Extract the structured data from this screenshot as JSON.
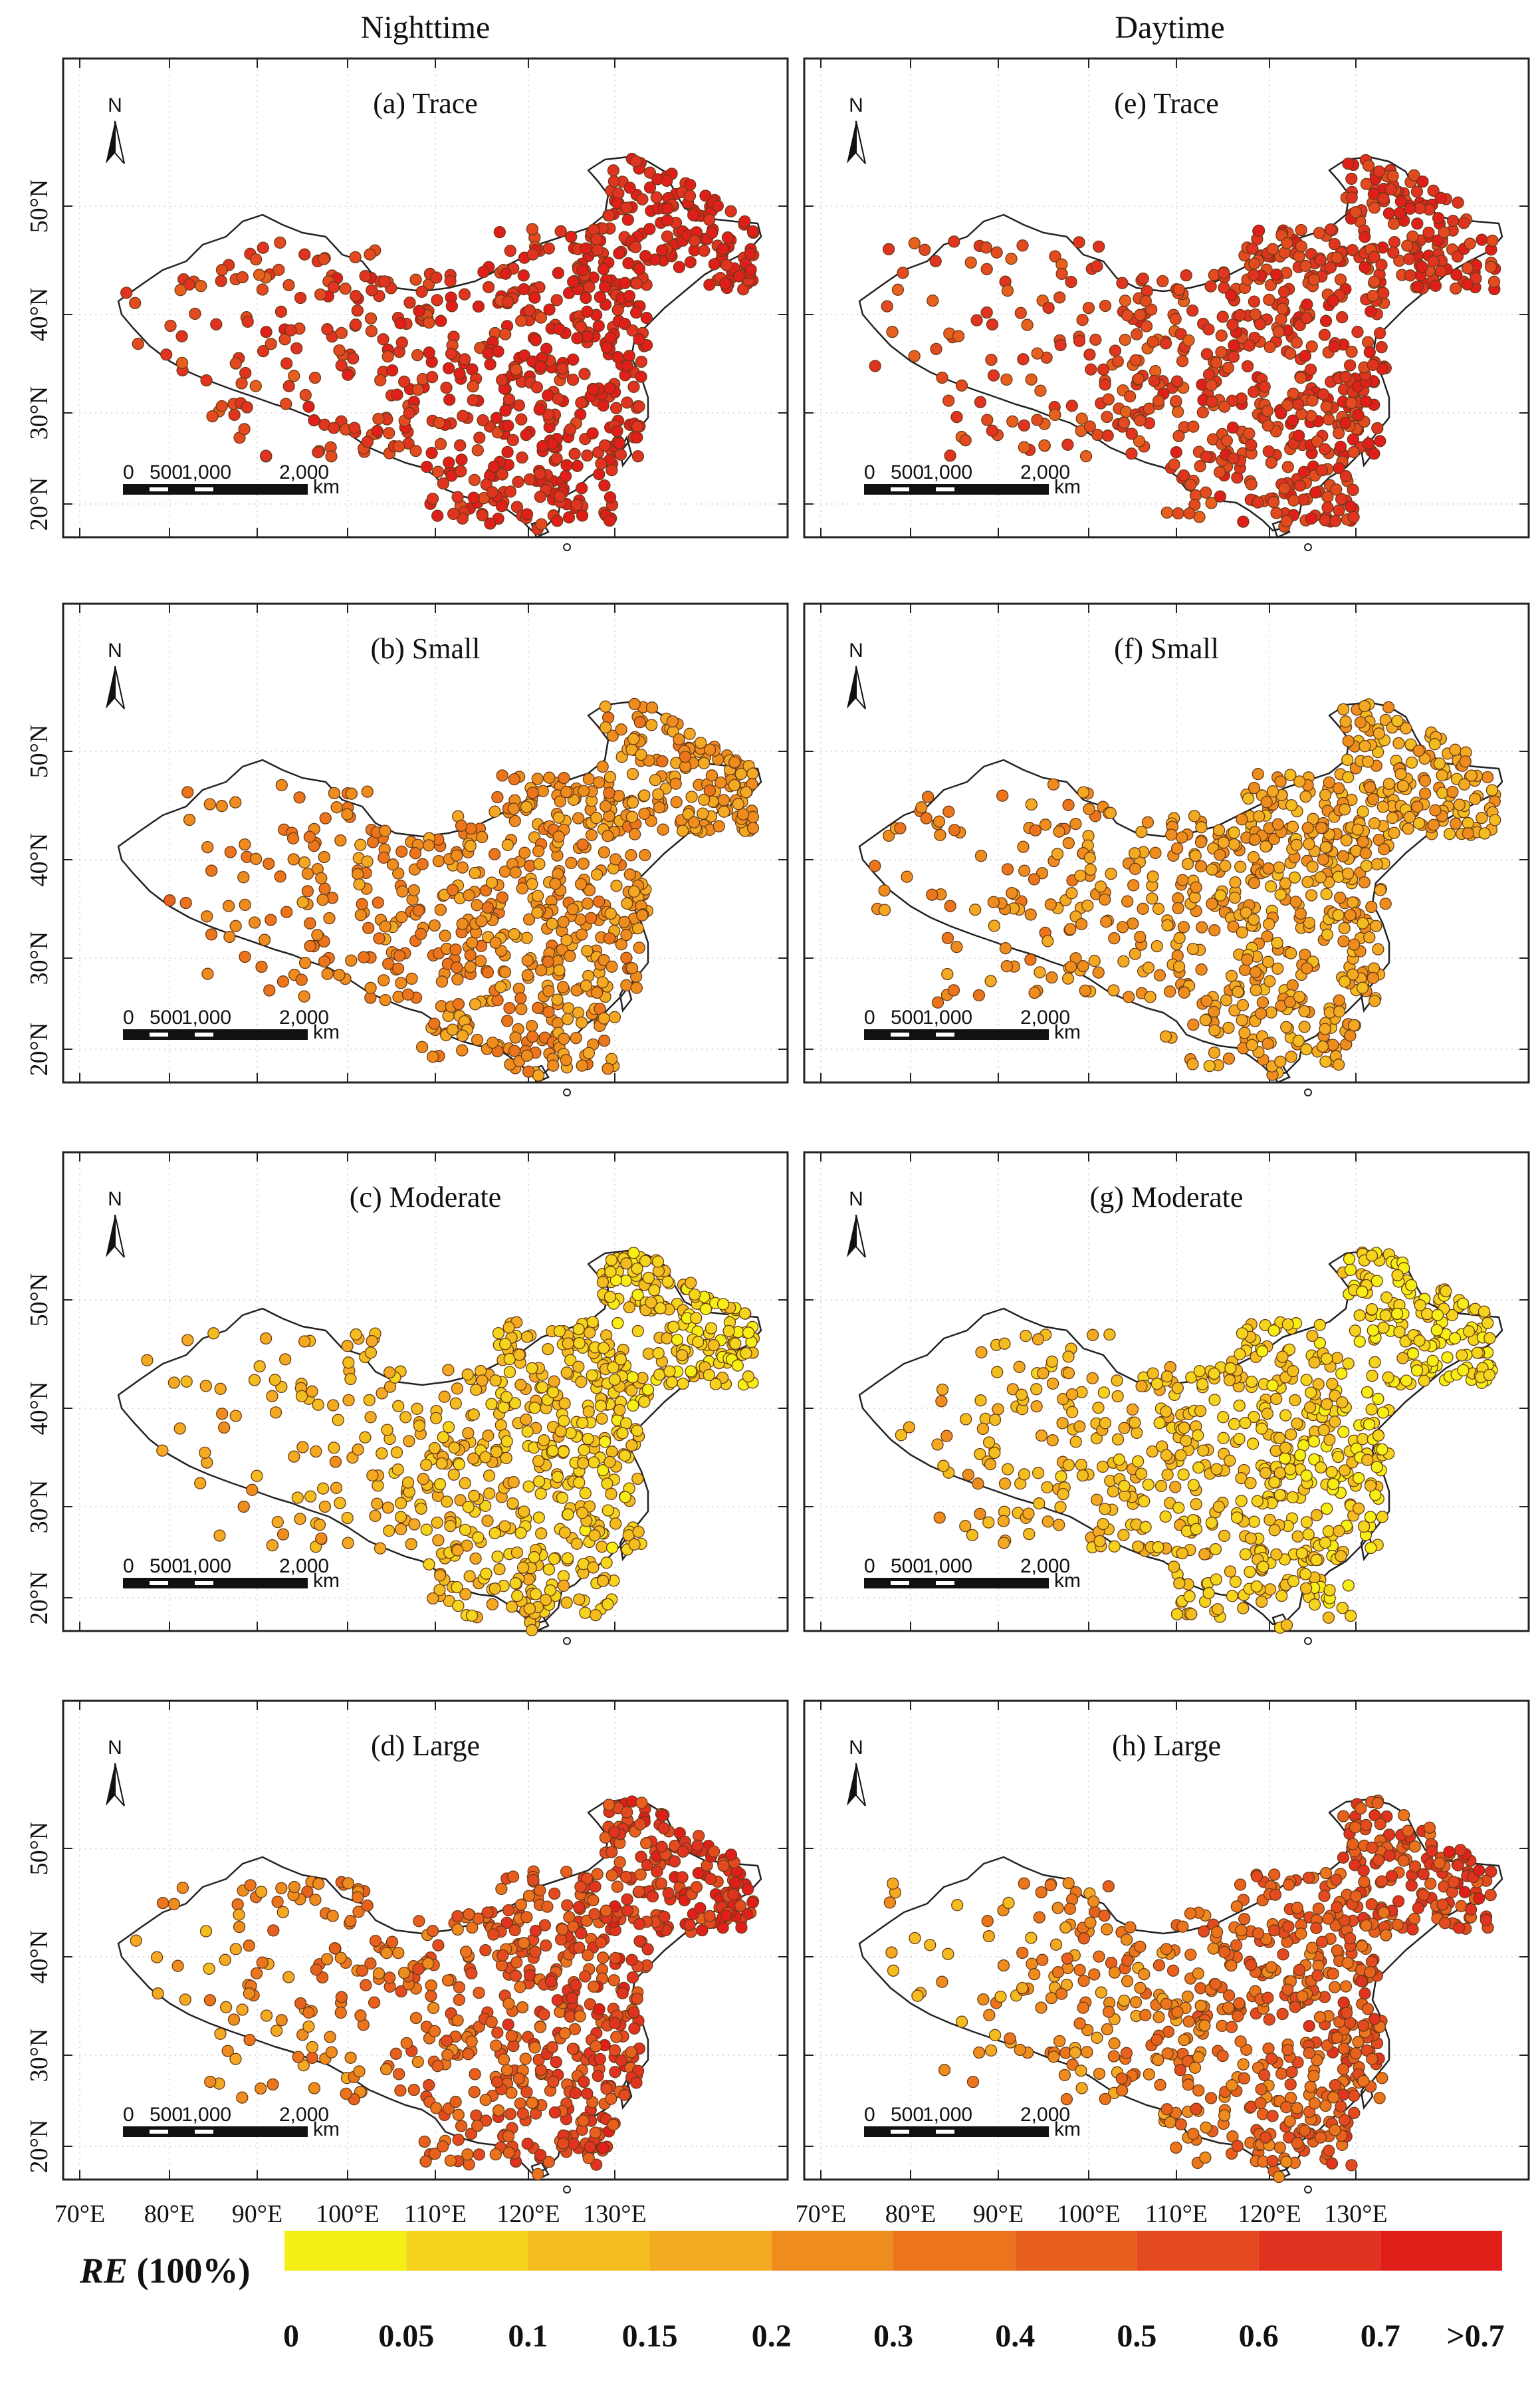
{
  "column_titles": [
    "Nighttime",
    "Daytime"
  ],
  "panels": [
    {
      "label": "(a) Trace",
      "column": "Nighttime",
      "intensity": 0.86,
      "spread": 0.12,
      "west_bias": -0.2
    },
    {
      "label": "(b) Small",
      "column": "Nighttime",
      "intensity": 0.46,
      "spread": 0.1,
      "west_bias": 0.12
    },
    {
      "label": "(c) Moderate",
      "column": "Nighttime",
      "intensity": 0.26,
      "spread": 0.1,
      "west_bias": 0.28
    },
    {
      "label": "(d) Large",
      "column": "Nighttime",
      "intensity": 0.62,
      "spread": 0.16,
      "west_bias": -0.55
    },
    {
      "label": "(e) Trace",
      "column": "Daytime",
      "intensity": 0.8,
      "spread": 0.12,
      "west_bias": -0.18
    },
    {
      "label": "(f) Small",
      "column": "Daytime",
      "intensity": 0.4,
      "spread": 0.1,
      "west_bias": 0.14
    },
    {
      "label": "(g) Moderate",
      "column": "Daytime",
      "intensity": 0.22,
      "spread": 0.1,
      "west_bias": 0.3
    },
    {
      "label": "(h) Large",
      "column": "Daytime",
      "intensity": 0.55,
      "spread": 0.16,
      "west_bias": -0.5
    }
  ],
  "north_arrow_label": "N",
  "lat_ticks": [
    "20°N",
    "30°N",
    "40°N",
    "50°N"
  ],
  "lon_ticks": [
    "70°E",
    "80°E",
    "90°E",
    "100°E",
    "110°E",
    "120°E",
    "130°E"
  ],
  "scale_bar": {
    "labels": [
      "0",
      "500",
      "1,000",
      "2,000"
    ],
    "unit": "km"
  },
  "legend": {
    "title_var": "RE",
    "title_unit": "(100%)",
    "labels": [
      "0",
      "0.05",
      "0.1",
      "0.15",
      "0.2",
      "0.3",
      "0.4",
      "0.5",
      "0.6",
      "0.7",
      ">0.7"
    ],
    "colors": [
      "#f5ef16",
      "#f4d41c",
      "#f3bd20",
      "#f3aa22",
      "#ef8c1e",
      "#ec741d",
      "#e8601e",
      "#e34a20",
      "#e03320",
      "#e01f1a"
    ]
  },
  "colors": {
    "outline": "#222222",
    "frame": "#222222",
    "station_edge": "#6a3b17"
  }
}
